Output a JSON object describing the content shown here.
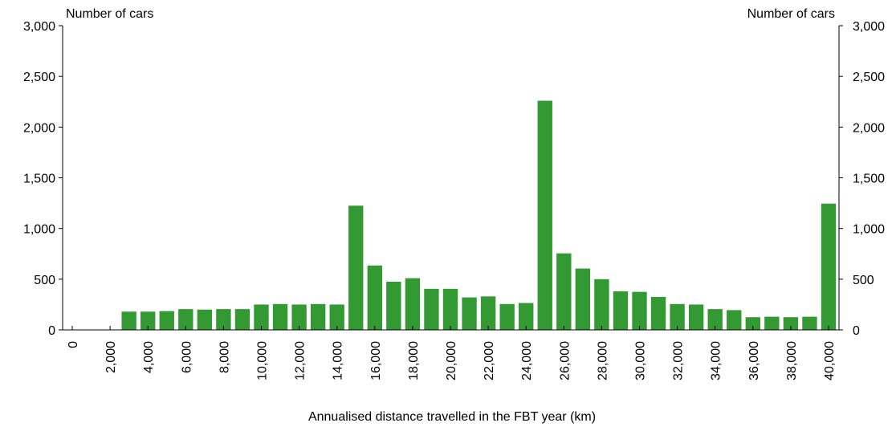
{
  "chart_data": {
    "type": "bar",
    "title": "",
    "xlabel": "Annualised distance travelled in the FBT year (km)",
    "ylabel_left": "Number of cars",
    "ylabel_right": "Number of cars",
    "ylim": [
      0,
      3000
    ],
    "yticks": [
      0,
      500,
      1000,
      1500,
      2000,
      2500,
      3000
    ],
    "ytick_labels": [
      "0",
      "500",
      "1,000",
      "1,500",
      "2,000",
      "2,500",
      "3,000"
    ],
    "xticks": [
      0,
      2000,
      4000,
      6000,
      8000,
      10000,
      12000,
      14000,
      16000,
      18000,
      20000,
      22000,
      24000,
      26000,
      28000,
      30000,
      32000,
      34000,
      36000,
      38000,
      40000
    ],
    "xtick_labels": [
      "0",
      "2,000",
      "4,000",
      "6,000",
      "8,000",
      "10,000",
      "12,000",
      "14,000",
      "16,000",
      "18,000",
      "20,000",
      "22,000",
      "24,000",
      "26,000",
      "28,000",
      "30,000",
      "32,000",
      "34,000",
      "36,000",
      "38,000",
      "40,000"
    ],
    "bin_width": 1000,
    "x": [
      0,
      1000,
      2000,
      3000,
      4000,
      5000,
      6000,
      7000,
      8000,
      9000,
      10000,
      11000,
      12000,
      13000,
      14000,
      15000,
      16000,
      17000,
      18000,
      19000,
      20000,
      21000,
      22000,
      23000,
      24000,
      25000,
      26000,
      27000,
      28000,
      29000,
      30000,
      31000,
      32000,
      33000,
      34000,
      35000,
      36000,
      37000,
      38000,
      39000,
      40000
    ],
    "values": [
      0,
      0,
      0,
      180,
      180,
      185,
      205,
      200,
      205,
      205,
      250,
      255,
      250,
      255,
      250,
      1225,
      635,
      475,
      510,
      405,
      405,
      320,
      330,
      255,
      265,
      2260,
      755,
      605,
      500,
      380,
      375,
      325,
      255,
      250,
      205,
      195,
      125,
      130,
      125,
      130,
      1245
    ],
    "bar_color": "#339933",
    "grid": false,
    "legend": "none"
  }
}
